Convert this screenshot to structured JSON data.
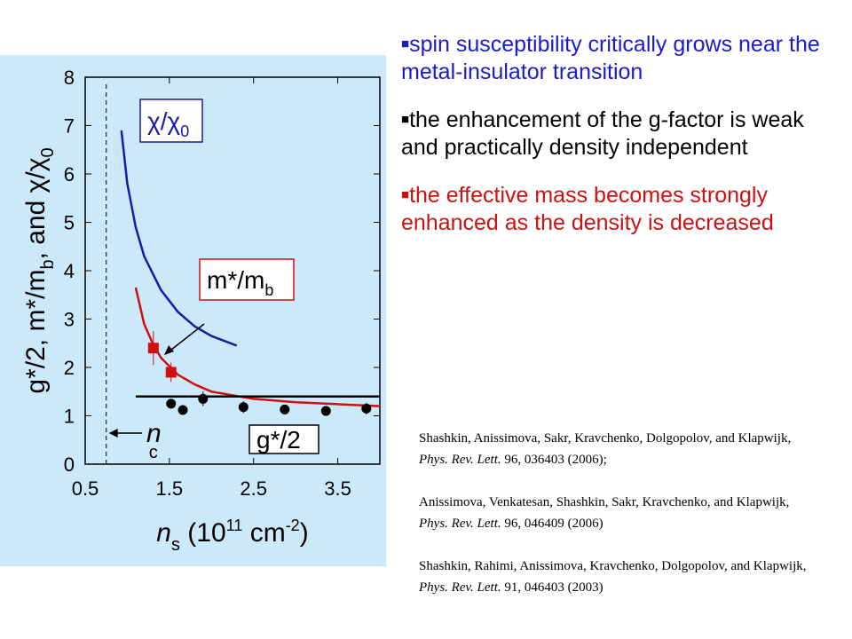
{
  "chart_data": {
    "type": "line",
    "xlabel": {
      "main": "n",
      "sub": "s",
      "pre": " (10",
      "sup1": "11",
      "mid": " cm",
      "sup2": "-2",
      "post": ")"
    },
    "ylabel": {
      "p1": "g*/2, m*/m",
      "s1": "b",
      "p2": ", and  χ/χ",
      "s2": "0"
    },
    "xlim": [
      0.5,
      4.0
    ],
    "xticks": [
      0.5,
      1.5,
      2.5,
      3.5
    ],
    "ylim": [
      0,
      8
    ],
    "yticks": [
      0,
      1,
      2,
      3,
      4,
      5,
      6,
      7,
      8
    ],
    "nc": {
      "x": 0.75,
      "main": "n",
      "sub": "c"
    },
    "series": [
      {
        "name": {
          "main": "χ/χ",
          "sub": "0"
        },
        "color": "#1a1aa8",
        "x": [
          0.93,
          1.0,
          1.1,
          1.2,
          1.4,
          1.6,
          1.8,
          2.0,
          2.3
        ],
        "y": [
          6.9,
          5.8,
          4.9,
          4.3,
          3.6,
          3.15,
          2.85,
          2.65,
          2.45
        ]
      },
      {
        "name": {
          "main": "m*/m",
          "sub": "b"
        },
        "color": "#d01010",
        "x": [
          1.1,
          1.2,
          1.3,
          1.4,
          1.6,
          1.8,
          2.0,
          2.5,
          3.0,
          3.5,
          4.0
        ],
        "y": [
          3.65,
          2.9,
          2.5,
          2.2,
          1.85,
          1.65,
          1.5,
          1.35,
          1.28,
          1.24,
          1.2
        ],
        "points": {
          "x": [
            1.31,
            1.52
          ],
          "y": [
            2.4,
            1.9
          ],
          "err": [
            0.35,
            0.2
          ]
        }
      },
      {
        "name": {
          "main": "g*/2",
          "sub": ""
        },
        "color": "#000000",
        "x": [
          1.1,
          4.0
        ],
        "y": [
          1.4,
          1.4
        ],
        "points": {
          "x": [
            1.52,
            1.66,
            1.9,
            2.38,
            2.87,
            3.36,
            3.84
          ],
          "y": [
            1.25,
            1.12,
            1.35,
            1.18,
            1.13,
            1.1,
            1.15
          ],
          "err": [
            0.08,
            0.08,
            0.15,
            0.12,
            0.1,
            0.1,
            0.12
          ]
        }
      }
    ]
  },
  "bullets": [
    {
      "text": "spin susceptibility critically grows near the metal-insulator transition",
      "color": "#1a1ad0"
    },
    {
      "text": "the enhancement of the g-factor is weak and practically density independent",
      "color": "#000000"
    },
    {
      "text": "the effective mass becomes strongly enhanced as the density is decreased",
      "color": "#d01010"
    }
  ],
  "references": [
    {
      "authors": "Shashkin, Anissimova, Sakr, Kravchenko, Dolgopolov, and Klapwijk, ",
      "journal": "Phys. Rev. Lett.",
      "rest": " 96, 036403 (2006);"
    },
    {
      "authors": "Anissimova, Venkatesan, Shashkin, Sakr, Kravchenko, and Klapwijk, ",
      "journal": "Phys. Rev. Lett.",
      "rest": " 96, 046409 (2006)"
    },
    {
      "authors": "Shashkin, Rahimi, Anissimova, Kravchenko, Dolgopolov, and Klapwijk, ",
      "journal": "Phys. Rev. Lett.",
      "rest": " 91, 046403 (2003)"
    }
  ]
}
